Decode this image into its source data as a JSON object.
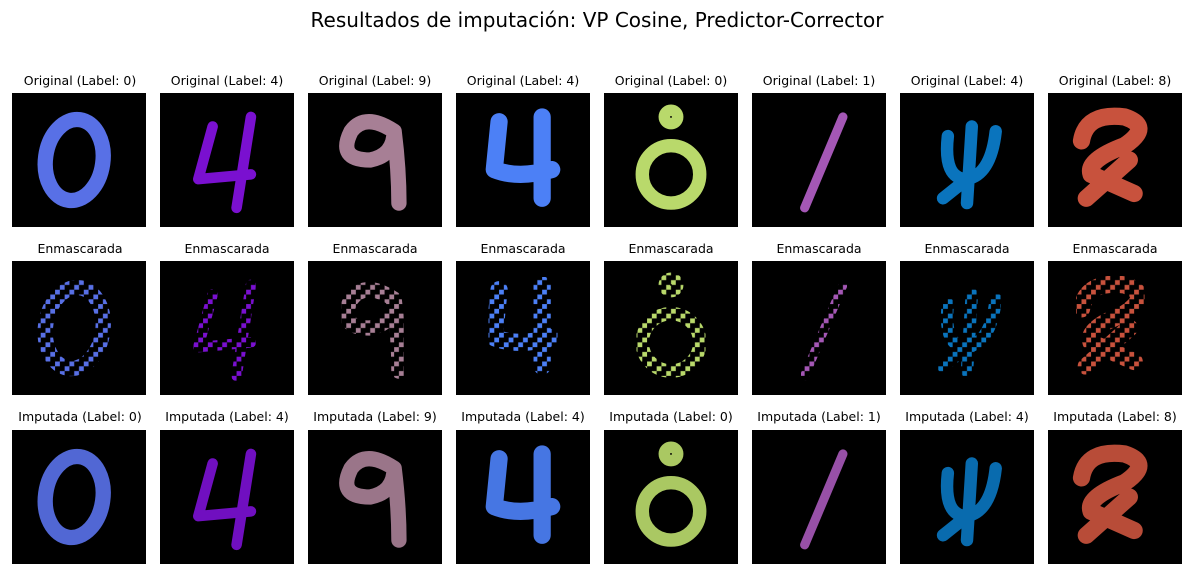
{
  "figure": {
    "title": "Resultados de imputación: VP Cosine, Predictor-Corrector"
  },
  "rows": [
    {
      "key": "original",
      "titles": [
        "Original (Label: 0)",
        "Original (Label: 4)",
        "Original (Label: 9)",
        "Original (Label: 4)",
        "Original (Label: 0)",
        "Original (Label: 1)",
        "Original (Label: 4)",
        "Original (Label: 8)"
      ]
    },
    {
      "key": "masked",
      "titles": [
        "Enmascarada",
        "Enmascarada",
        "Enmascarada",
        "Enmascarada",
        "Enmascarada",
        "Enmascarada",
        "Enmascarada",
        "Enmascarada"
      ]
    },
    {
      "key": "imputed",
      "titles": [
        "Imputada (Label: 0)",
        "Imputada (Label: 4)",
        "Imputada (Label: 9)",
        "Imputada (Label: 4)",
        "Imputada (Label: 0)",
        "Imputada (Label: 1)",
        "Imputada (Label: 4)",
        "Imputada (Label: 8)"
      ]
    }
  ],
  "digits": [
    {
      "digit": 0,
      "color": "#5870e6"
    },
    {
      "digit": 4,
      "color": "#7a10d0"
    },
    {
      "digit": 9,
      "color": "#a77f95"
    },
    {
      "digit": 4,
      "color": "#4c80f6"
    },
    {
      "digit": 0,
      "color": "#b9d96b"
    },
    {
      "digit": 1,
      "color": "#a457b5"
    },
    {
      "digit": 4,
      "color": "#0a74bd"
    },
    {
      "digit": 8,
      "color": "#c8523d"
    }
  ]
}
